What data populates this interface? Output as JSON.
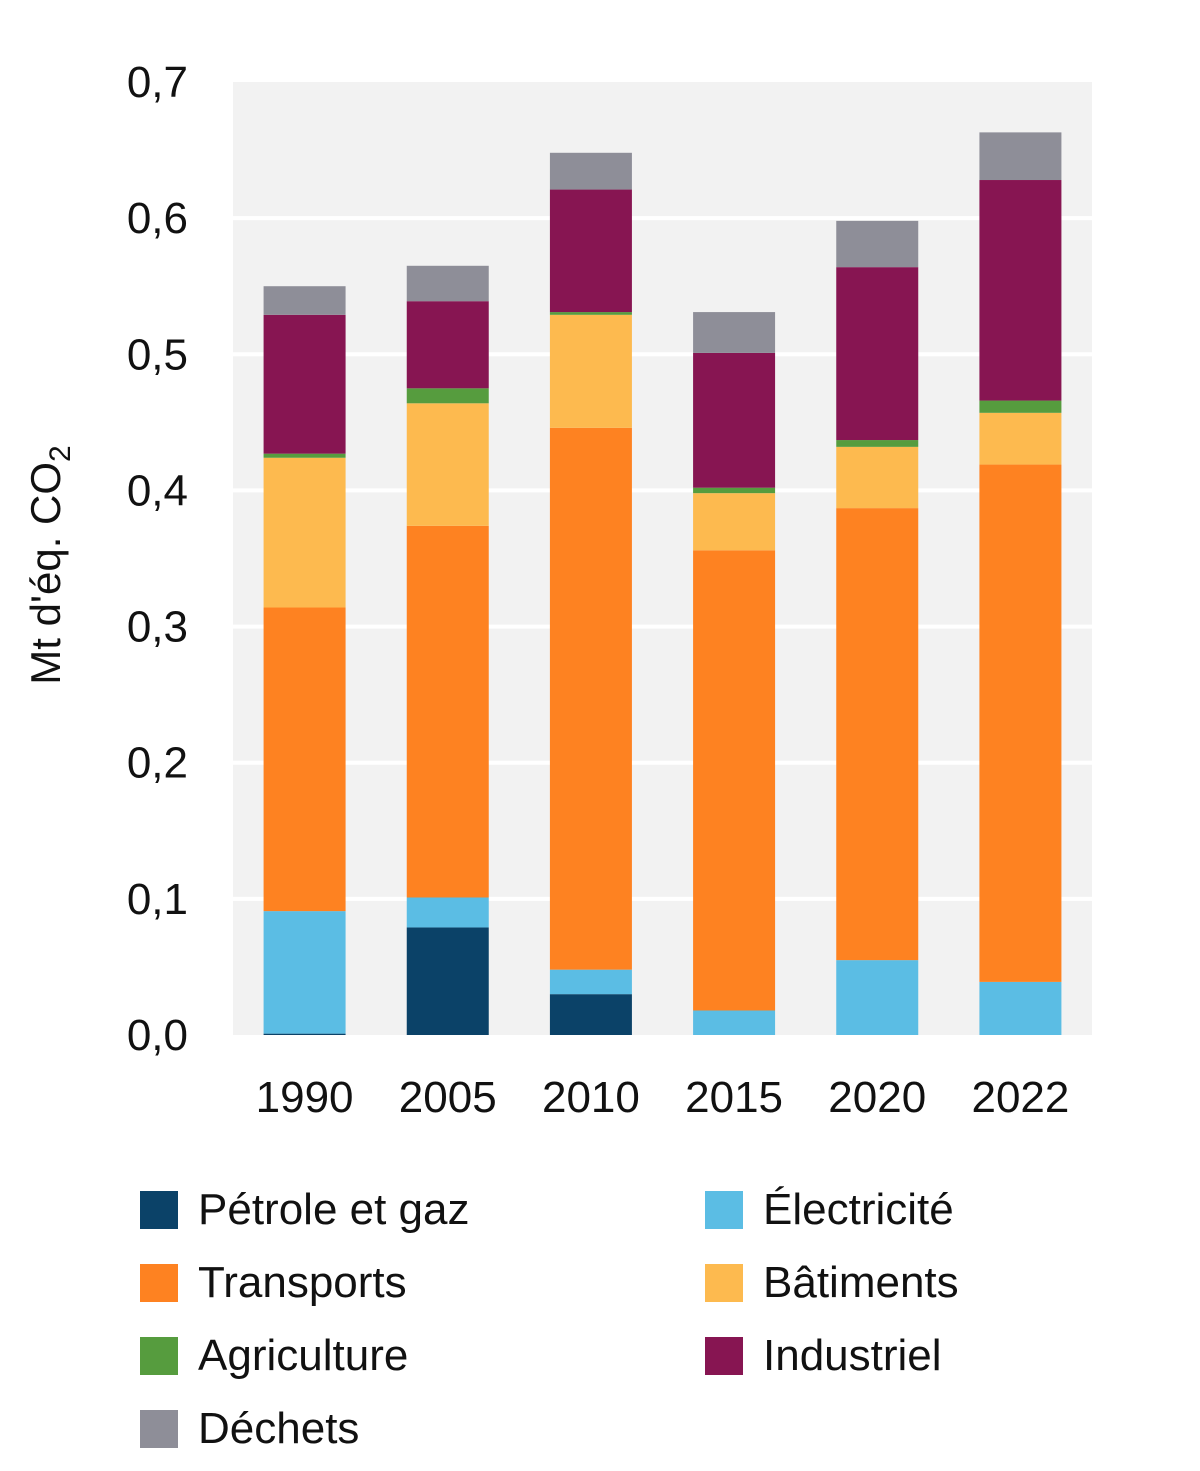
{
  "chart_data": {
    "type": "bar",
    "stacked": true,
    "ylabel": "Mt d'éq. CO",
    "ylabel_subscript": "2",
    "ylim": [
      0,
      0.7
    ],
    "yticks": [
      "0,0",
      "0,1",
      "0,2",
      "0,3",
      "0,4",
      "0,5",
      "0,6",
      "0,7"
    ],
    "grid": true,
    "legend_position": "bottom",
    "categories": [
      "1990",
      "2005",
      "2010",
      "2015",
      "2020",
      "2022"
    ],
    "series": [
      {
        "name": "Pétrole et gaz",
        "color": "#0b4268",
        "values": [
          0.001,
          0.079,
          0.03,
          0.0,
          0.0,
          0.0
        ]
      },
      {
        "name": "Électricité",
        "color": "#5bbde4",
        "values": [
          0.09,
          0.022,
          0.018,
          0.018,
          0.055,
          0.039
        ]
      },
      {
        "name": "Transports",
        "color": "#fe8221",
        "values": [
          0.223,
          0.273,
          0.398,
          0.338,
          0.332,
          0.38
        ]
      },
      {
        "name": "Bâtiments",
        "color": "#fdba4f",
        "values": [
          0.11,
          0.09,
          0.083,
          0.042,
          0.045,
          0.038
        ]
      },
      {
        "name": "Agriculture",
        "color": "#569c3e",
        "values": [
          0.003,
          0.011,
          0.002,
          0.004,
          0.005,
          0.009
        ]
      },
      {
        "name": "Industriel",
        "color": "#871552",
        "values": [
          0.102,
          0.064,
          0.09,
          0.099,
          0.127,
          0.162
        ]
      },
      {
        "name": "Déchets",
        "color": "#8e8e98",
        "values": [
          0.021,
          0.026,
          0.027,
          0.03,
          0.034,
          0.035
        ]
      }
    ]
  }
}
